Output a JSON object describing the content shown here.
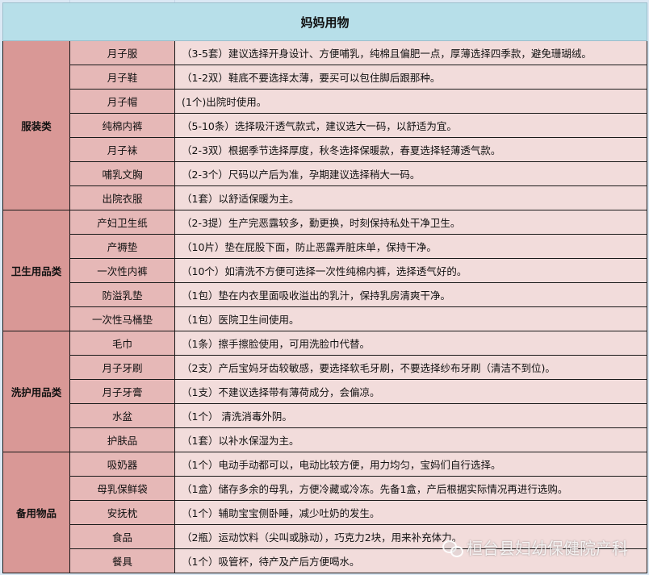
{
  "title": "妈妈用物",
  "categories": [
    {
      "name": "服装类",
      "items": [
        {
          "item": "月子服",
          "desc": "（3-5套）建议选择开身设计、方便哺乳，纯棉且偏肥一点，厚薄选择四季款，避免珊瑚绒。"
        },
        {
          "item": "月子鞋",
          "desc": "（1-2双）鞋底不要选择太薄，要买可以包住脚后跟那种。"
        },
        {
          "item": "月子帽",
          "desc": "(1个)出院时使用。"
        },
        {
          "item": "纯棉内裤",
          "desc": "（5-10条）选择吸汗透气款式，建议选大一码，以舒适为宜。"
        },
        {
          "item": "月子袜",
          "desc": "（2-3双）根据季节选择厚度，秋冬选择保暖款，春夏选择轻薄透气款。"
        },
        {
          "item": "哺乳文胸",
          "desc": "（2-3个）尺码以产后为准，孕期建议选择稍大一码。"
        },
        {
          "item": "出院衣服",
          "desc": "（1套）以舒适保暖为主。"
        }
      ]
    },
    {
      "name": "卫生用品类",
      "items": [
        {
          "item": "产妇卫生纸",
          "desc": "（2-3提）生产完恶露较多，勤更换，时刻保持私处干净卫生。"
        },
        {
          "item": "产褥垫",
          "desc": "（10片）垫在屁股下面，防止恶露弄脏床单，保持干净。"
        },
        {
          "item": "一次性内裤",
          "desc": "（10个）如清洗不方便可选择一次性纯棉内裤，选择透气好的。"
        },
        {
          "item": "防溢乳垫",
          "desc": "（1包）垫在内衣里面吸收溢出的乳汁，保持乳房清爽干净。"
        },
        {
          "item": "一次性马桶垫",
          "desc": "（1包）医院卫生间使用。"
        }
      ]
    },
    {
      "name": "洗护用品类",
      "items": [
        {
          "item": "毛巾",
          "desc": "（1条）擦手擦脸使用，可用洗脸巾代替。"
        },
        {
          "item": "月子牙刷",
          "desc": "（2支）产后宝妈牙齿较敏感，要选择软毛牙刷，不要选择纱布牙刷（清洁不到位)。"
        },
        {
          "item": "月子牙膏",
          "desc": "（1支）不建议选择带有薄荷成分，会偏凉。"
        },
        {
          "item": "水盆",
          "desc": "（1个） 清洗消毒外阴。"
        },
        {
          "item": "护肤品",
          "desc": "（1套）以补水保湿为主。"
        }
      ]
    },
    {
      "name": "备用物品",
      "items": [
        {
          "item": "吸奶器",
          "desc": "（1个）电动手动都可以，电动比较方便，用力均匀，宝妈们自行选择。"
        },
        {
          "item": "母乳保鲜袋",
          "desc": "（1盒）储存多余的母乳，方便冷藏或冷冻。先备1盒，产后根据实际情况再进行选购。"
        },
        {
          "item": "安抚枕",
          "desc": "（1个）辅助宝宝侧卧睡，减少吐奶的发生。"
        },
        {
          "item": "食品",
          "desc": "（2瓶）运动饮料（尖叫或脉动），巧克力2块，用来补充体力。"
        },
        {
          "item": "餐具",
          "desc": "（1个）吸管杯，待产及产后方便喝水。"
        }
      ]
    }
  ],
  "watermark": {
    "text": "桓台县妇幼保健院产科",
    "icon": "wechat-icon"
  },
  "colors": {
    "title_bg": "#b7dfe9",
    "category_bg": "#d99896",
    "item_bg": "#e6b8b7",
    "desc_bg": "#f2dcdb"
  }
}
